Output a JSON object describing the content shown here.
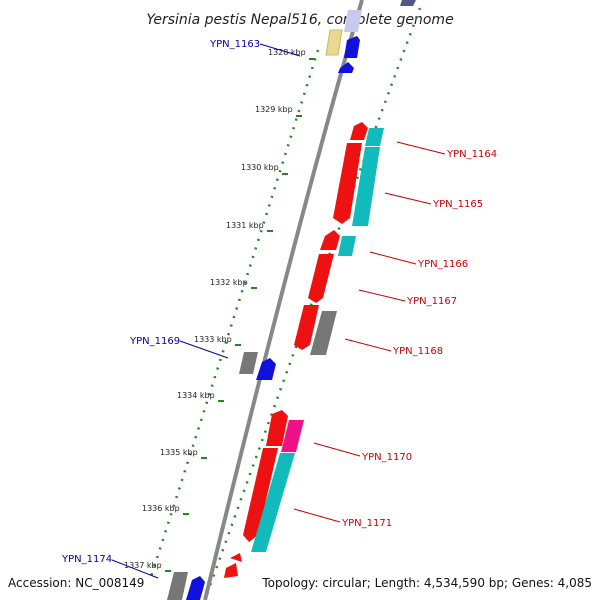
{
  "title": "Yersinia pestis Nepal516, complete genome",
  "accession": "Accession: NC_008149",
  "topology": "Topology: circular; Length: 4,534,590 bp; Genes: 4,085",
  "ticks": [
    "1328 kbp",
    "1329 kbp",
    "1330 kbp",
    "1331 kbp",
    "1332 kbp",
    "1333 kbp",
    "1334 kbp",
    "1335 kbp",
    "1336 kbp",
    "1337 kbp"
  ],
  "genes_right": [
    "YPN_1164",
    "YPN_1165",
    "YPN_1166",
    "YPN_1167",
    "YPN_1168",
    "YPN_1170",
    "YPN_1171"
  ],
  "genes_left": [
    "YPN_1163",
    "YPN_1169",
    "YPN_1174"
  ],
  "colors": {
    "backbone": "#888888",
    "forward_cds": "#ee1111",
    "reverse_blue": "#1111dd",
    "gray_gene": "#777777",
    "cyan_gene": "#11bbbb",
    "magenta_gene": "#ee1188",
    "tan_gene": "#e8d890",
    "tick_dots": "#228822",
    "label_right": "#cc0000",
    "label_left": "#0000aa"
  }
}
